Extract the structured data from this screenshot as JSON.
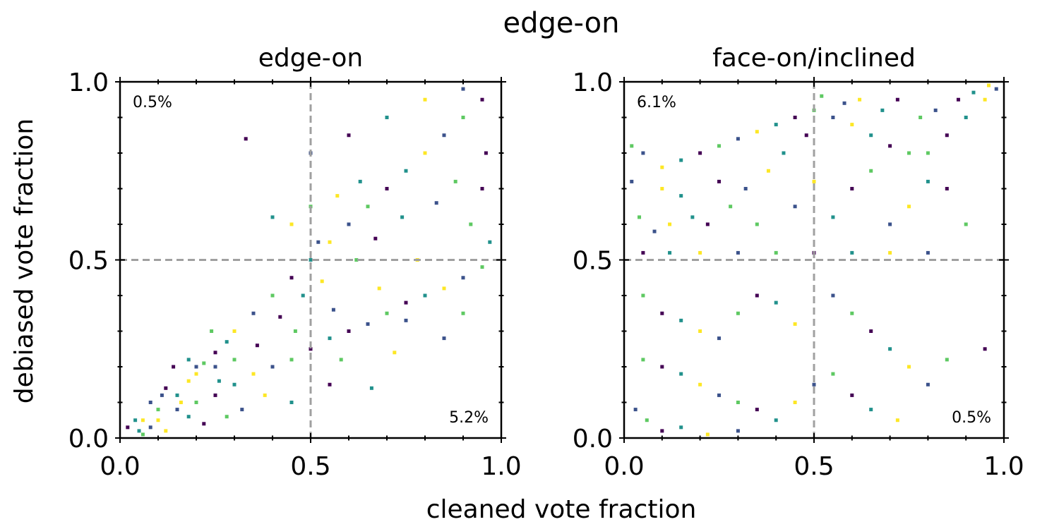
{
  "figure": {
    "suptitle": "edge-on",
    "xlabel": "cleaned vote fraction",
    "ylabel": "debiased vote fraction"
  },
  "colormap": [
    "#440154",
    "#3b528b",
    "#21918c",
    "#5ec962",
    "#fde725"
  ],
  "guide_color": "#a0a0a0",
  "chart_data": [
    {
      "type": "scatter",
      "title": "edge-on",
      "xlim": [
        0,
        1
      ],
      "ylim": [
        0,
        1
      ],
      "xticks": [
        "0.0",
        "0.5",
        "1.0"
      ],
      "yticks": [
        "0.0",
        "0.5",
        "1.0"
      ],
      "guides": {
        "x": 0.5,
        "y": 0.5
      },
      "annotations": {
        "upper_left": "0.5%",
        "lower_right": "5.2%"
      },
      "series": [
        {
          "values": [
            [
              0.02,
              0.03
            ],
            [
              0.04,
              0.05
            ],
            [
              0.06,
              0.05
            ],
            [
              0.08,
              0.1
            ],
            [
              0.1,
              0.08
            ],
            [
              0.12,
              0.14
            ],
            [
              0.15,
              0.12
            ],
            [
              0.18,
              0.16
            ],
            [
              0.2,
              0.2
            ],
            [
              0.22,
              0.21
            ],
            [
              0.25,
              0.24
            ],
            [
              0.28,
              0.27
            ],
            [
              0.3,
              0.3
            ],
            [
              0.35,
              0.35
            ],
            [
              0.4,
              0.4
            ],
            [
              0.45,
              0.45
            ],
            [
              0.5,
              0.5
            ],
            [
              0.55,
              0.55
            ],
            [
              0.6,
              0.6
            ],
            [
              0.65,
              0.65
            ],
            [
              0.7,
              0.7
            ],
            [
              0.75,
              0.75
            ],
            [
              0.8,
              0.8
            ],
            [
              0.85,
              0.85
            ],
            [
              0.9,
              0.9
            ],
            [
              0.95,
              0.95
            ],
            [
              0.05,
              0.02
            ],
            [
              0.1,
              0.05
            ],
            [
              0.15,
              0.08
            ],
            [
              0.2,
              0.1
            ],
            [
              0.25,
              0.12
            ],
            [
              0.3,
              0.15
            ],
            [
              0.35,
              0.18
            ],
            [
              0.4,
              0.2
            ],
            [
              0.45,
              0.22
            ],
            [
              0.5,
              0.25
            ],
            [
              0.55,
              0.28
            ],
            [
              0.6,
              0.3
            ],
            [
              0.65,
              0.32
            ],
            [
              0.7,
              0.35
            ],
            [
              0.75,
              0.38
            ],
            [
              0.8,
              0.4
            ],
            [
              0.85,
              0.42
            ],
            [
              0.9,
              0.45
            ],
            [
              0.95,
              0.48
            ],
            [
              0.14,
              0.2
            ],
            [
              0.18,
              0.22
            ],
            [
              0.2,
              0.18
            ],
            [
              0.25,
              0.2
            ],
            [
              0.3,
              0.22
            ],
            [
              0.33,
              0.84
            ],
            [
              0.4,
              0.62
            ],
            [
              0.45,
              0.6
            ],
            [
              0.5,
              0.8
            ],
            [
              0.5,
              0.65
            ],
            [
              0.6,
              0.85
            ],
            [
              0.7,
              0.9
            ],
            [
              0.8,
              0.95
            ],
            [
              0.9,
              0.98
            ],
            [
              0.92,
              0.6
            ],
            [
              0.95,
              0.7
            ],
            [
              0.97,
              0.55
            ],
            [
              0.68,
              0.42
            ],
            [
              0.75,
              0.33
            ],
            [
              0.58,
              0.22
            ],
            [
              0.6,
              0.3
            ],
            [
              0.66,
              0.14
            ],
            [
              0.72,
              0.24
            ],
            [
              0.85,
              0.28
            ],
            [
              0.9,
              0.35
            ],
            [
              0.55,
              0.15
            ],
            [
              0.45,
              0.1
            ],
            [
              0.38,
              0.12
            ],
            [
              0.32,
              0.08
            ],
            [
              0.28,
              0.06
            ],
            [
              0.22,
              0.04
            ],
            [
              0.18,
              0.06
            ],
            [
              0.12,
              0.02
            ],
            [
              0.08,
              0.03
            ],
            [
              0.06,
              0.01
            ],
            [
              0.42,
              0.34
            ],
            [
              0.48,
              0.4
            ],
            [
              0.53,
              0.44
            ],
            [
              0.56,
              0.36
            ],
            [
              0.62,
              0.5
            ],
            [
              0.67,
              0.56
            ],
            [
              0.74,
              0.62
            ],
            [
              0.78,
              0.5
            ],
            [
              0.83,
              0.66
            ],
            [
              0.88,
              0.72
            ],
            [
              0.96,
              0.8
            ],
            [
              0.63,
              0.72
            ],
            [
              0.57,
              0.68
            ],
            [
              0.52,
              0.55
            ],
            [
              0.46,
              0.3
            ],
            [
              0.36,
              0.26
            ],
            [
              0.26,
              0.16
            ],
            [
              0.16,
              0.1
            ],
            [
              0.11,
              0.12
            ],
            [
              0.24,
              0.3
            ]
          ]
        }
      ]
    },
    {
      "type": "scatter",
      "title": "face-on/inclined",
      "xlim": [
        0,
        1
      ],
      "ylim": [
        0,
        1
      ],
      "xticks": [
        "0.0",
        "0.5",
        "1.0"
      ],
      "yticks": [
        "0.0",
        "0.5",
        "1.0"
      ],
      "guides": {
        "x": 0.5,
        "y": 0.5
      },
      "annotations": {
        "upper_left": "6.1%",
        "lower_right": "0.5%"
      },
      "series": [
        {
          "values": [
            [
              0.8,
              0.8
            ],
            [
              0.85,
              0.85
            ],
            [
              0.9,
              0.9
            ],
            [
              0.95,
              0.95
            ],
            [
              0.98,
              0.98
            ],
            [
              0.75,
              0.8
            ],
            [
              0.7,
              0.82
            ],
            [
              0.65,
              0.85
            ],
            [
              0.6,
              0.88
            ],
            [
              0.55,
              0.9
            ],
            [
              0.5,
              0.92
            ],
            [
              0.45,
              0.9
            ],
            [
              0.4,
              0.88
            ],
            [
              0.35,
              0.86
            ],
            [
              0.3,
              0.84
            ],
            [
              0.25,
              0.82
            ],
            [
              0.2,
              0.8
            ],
            [
              0.15,
              0.78
            ],
            [
              0.1,
              0.76
            ],
            [
              0.05,
              0.8
            ],
            [
              0.02,
              0.82
            ],
            [
              0.88,
              0.95
            ],
            [
              0.92,
              0.97
            ],
            [
              0.96,
              0.99
            ],
            [
              0.82,
              0.92
            ],
            [
              0.78,
              0.9
            ],
            [
              0.72,
              0.95
            ],
            [
              0.68,
              0.92
            ],
            [
              0.62,
              0.95
            ],
            [
              0.58,
              0.94
            ],
            [
              0.52,
              0.96
            ],
            [
              0.48,
              0.85
            ],
            [
              0.42,
              0.8
            ],
            [
              0.38,
              0.75
            ],
            [
              0.32,
              0.7
            ],
            [
              0.28,
              0.65
            ],
            [
              0.22,
              0.6
            ],
            [
              0.18,
              0.62
            ],
            [
              0.12,
              0.6
            ],
            [
              0.08,
              0.58
            ],
            [
              0.04,
              0.62
            ],
            [
              0.05,
              0.52
            ],
            [
              0.12,
              0.52
            ],
            [
              0.2,
              0.52
            ],
            [
              0.3,
              0.52
            ],
            [
              0.4,
              0.52
            ],
            [
              0.5,
              0.52
            ],
            [
              0.6,
              0.52
            ],
            [
              0.7,
              0.52
            ],
            [
              0.8,
              0.52
            ],
            [
              0.9,
              0.6
            ],
            [
              0.85,
              0.7
            ],
            [
              0.8,
              0.72
            ],
            [
              0.75,
              0.65
            ],
            [
              0.7,
              0.6
            ],
            [
              0.65,
              0.75
            ],
            [
              0.6,
              0.7
            ],
            [
              0.55,
              0.62
            ],
            [
              0.5,
              0.72
            ],
            [
              0.45,
              0.65
            ],
            [
              0.35,
              0.6
            ],
            [
              0.25,
              0.72
            ],
            [
              0.15,
              0.68
            ],
            [
              0.1,
              0.7
            ],
            [
              0.02,
              0.72
            ],
            [
              0.05,
              0.4
            ],
            [
              0.1,
              0.35
            ],
            [
              0.15,
              0.33
            ],
            [
              0.2,
              0.3
            ],
            [
              0.25,
              0.28
            ],
            [
              0.3,
              0.35
            ],
            [
              0.35,
              0.4
            ],
            [
              0.4,
              0.38
            ],
            [
              0.45,
              0.32
            ],
            [
              0.55,
              0.4
            ],
            [
              0.6,
              0.35
            ],
            [
              0.65,
              0.3
            ],
            [
              0.7,
              0.25
            ],
            [
              0.75,
              0.2
            ],
            [
              0.8,
              0.15
            ],
            [
              0.05,
              0.22
            ],
            [
              0.1,
              0.2
            ],
            [
              0.15,
              0.18
            ],
            [
              0.2,
              0.15
            ],
            [
              0.25,
              0.12
            ],
            [
              0.3,
              0.1
            ],
            [
              0.35,
              0.08
            ],
            [
              0.4,
              0.05
            ],
            [
              0.45,
              0.1
            ],
            [
              0.5,
              0.15
            ],
            [
              0.55,
              0.18
            ],
            [
              0.6,
              0.12
            ],
            [
              0.65,
              0.08
            ],
            [
              0.72,
              0.05
            ],
            [
              0.03,
              0.08
            ],
            [
              0.06,
              0.05
            ],
            [
              0.1,
              0.02
            ],
            [
              0.15,
              0.03
            ],
            [
              0.22,
              0.01
            ],
            [
              0.3,
              0.02
            ],
            [
              0.85,
              0.22
            ],
            [
              0.95,
              0.25
            ]
          ]
        }
      ]
    }
  ]
}
